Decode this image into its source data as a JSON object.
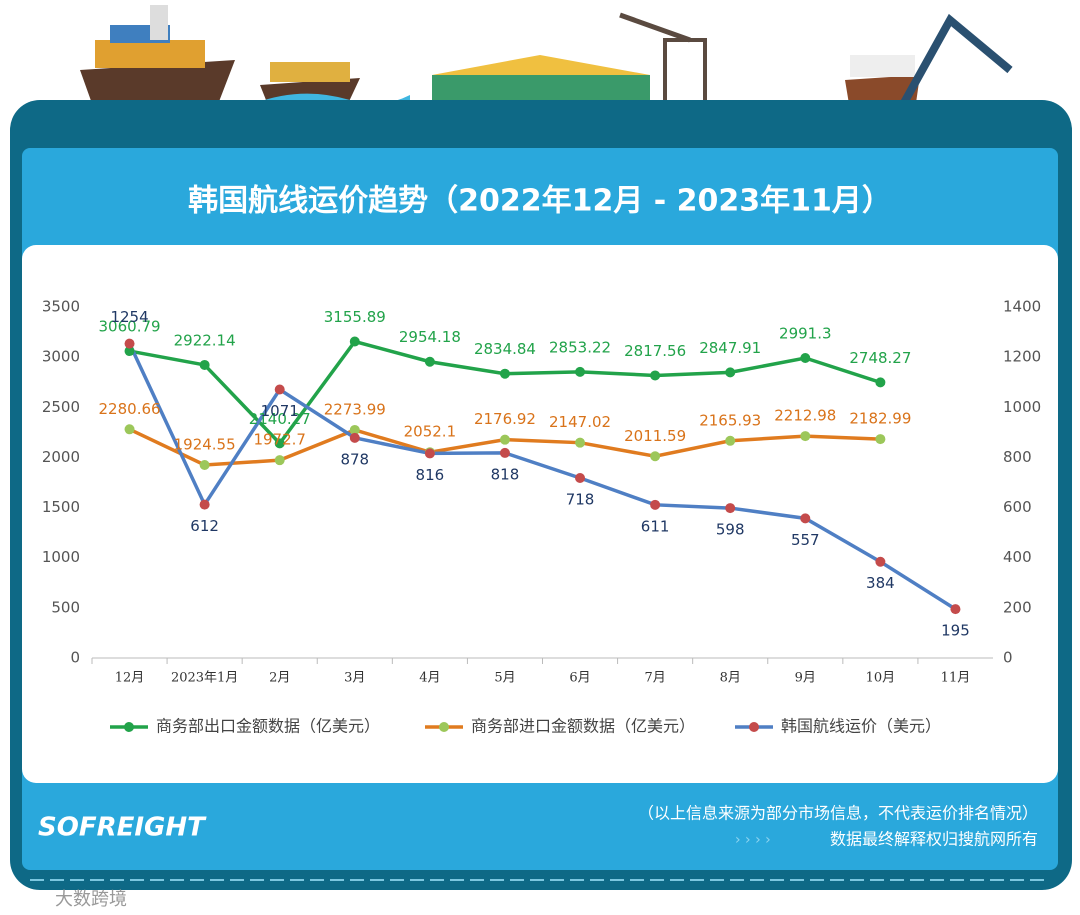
{
  "chart_data": {
    "type": "line",
    "title": "韩国航线运价趋势（2022年12月 - 2023年11月）",
    "categories": [
      "12月",
      "2023年1月",
      "2月",
      "3月",
      "4月",
      "5月",
      "6月",
      "7月",
      "8月",
      "9月",
      "10月",
      "11月"
    ],
    "series": [
      {
        "name": "商务部出口金额数据（亿美元）",
        "color": "#22a34a",
        "marker_color": "#22a34a",
        "label_color": "#22a34a",
        "values": [
          3060.79,
          2922.14,
          2140.27,
          3155.89,
          2954.18,
          2834.84,
          2853.22,
          2817.56,
          2847.91,
          2991.3,
          2748.27,
          null
        ]
      },
      {
        "name": "商务部进口金额数据（亿美元）",
        "color": "#e07b1f",
        "marker_color": "#9cc75a",
        "label_color": "#d9731a",
        "values": [
          2280.66,
          1924.55,
          1972.7,
          2273.99,
          2052.1,
          2176.92,
          2147.02,
          2011.59,
          2165.93,
          2212.98,
          2182.99,
          null
        ]
      },
      {
        "name": "韩国航线运价（美元）",
        "color": "#4f7fc4",
        "marker_color": "#c44b4b",
        "label_color": "#203864",
        "axis": "y2",
        "values": [
          1254,
          612,
          1071,
          878,
          816,
          818,
          718,
          611,
          598,
          557,
          384,
          195
        ]
      }
    ],
    "ylim": [
      0,
      3500
    ],
    "yticks": [
      0,
      500,
      1000,
      1500,
      2000,
      2500,
      3000,
      3500
    ],
    "y2lim": [
      0,
      1400
    ],
    "y2ticks": [
      0,
      200,
      400,
      600,
      800,
      1000,
      1200,
      1400
    ],
    "legend": "bottom"
  },
  "footer": {
    "logo": "SOFREIGHT",
    "source_note": "（以上信息来源为部分市场信息，不代表运价排名情况）",
    "rights_note": "数据最终解释权归搜航网所有",
    "watermark": "大数跨境"
  }
}
